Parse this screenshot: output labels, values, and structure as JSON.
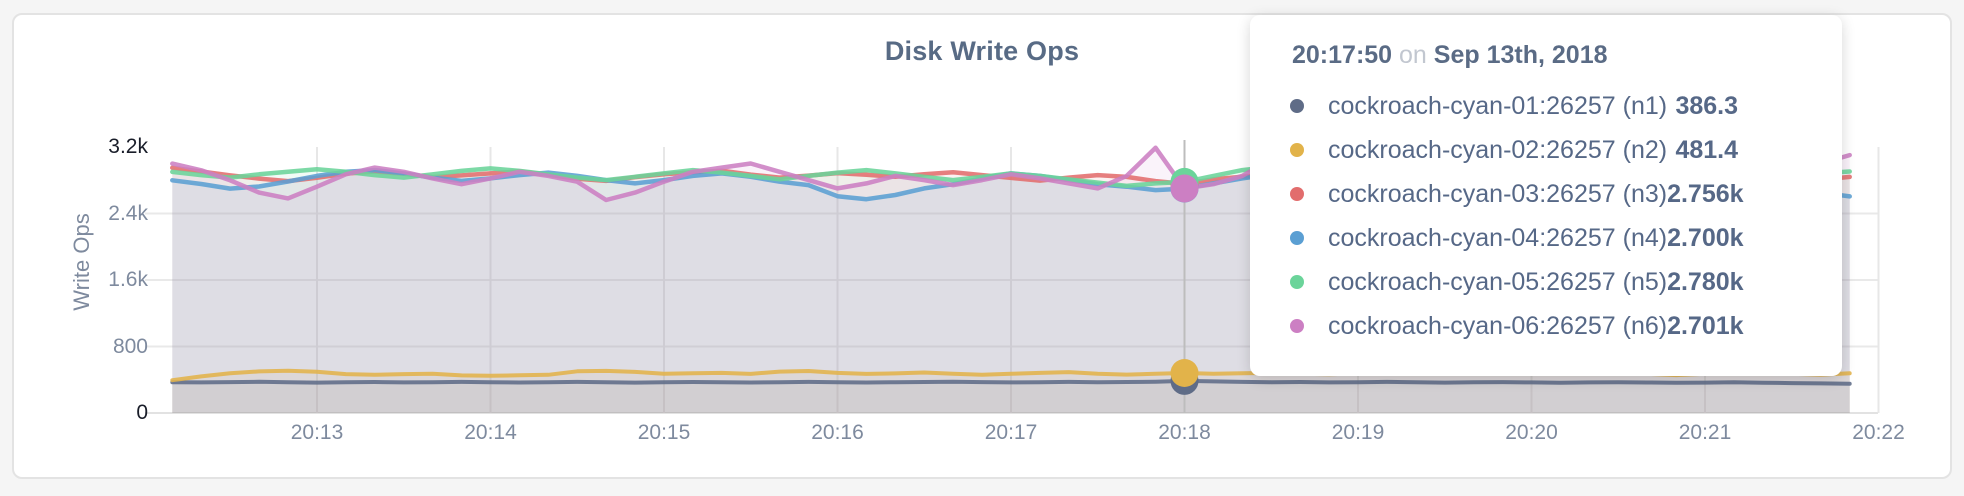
{
  "page": {
    "background": "#f5f5f5",
    "card_background": "#ffffff"
  },
  "chart": {
    "title": "Disk Write Ops",
    "ylabel": "Write Ops"
  },
  "tooltip": {
    "time": "20:17:50",
    "on_word": "on",
    "date": "Sep 13th, 2018"
  },
  "chart_data": {
    "type": "line",
    "title": "Disk Write Ops",
    "xlabel": "",
    "ylabel": "Write Ops",
    "ylim": [
      0,
      3200
    ],
    "y_ticks": [
      "0",
      "800",
      "1.6k",
      "2.4k",
      "3.2k"
    ],
    "y_tick_values": [
      0,
      800,
      1600,
      2400,
      3200
    ],
    "x_ticks": [
      "20:13",
      "20:14",
      "20:15",
      "20:16",
      "20:17",
      "20:18",
      "20:19",
      "20:20",
      "20:21",
      "20:22"
    ],
    "x_start_time": "20:12:00",
    "x_end_time": "20:21:40",
    "x_step_seconds": 10,
    "grid": true,
    "legend_position": "tooltip",
    "hover_index": 35,
    "hover_time": "20:17:50",
    "hover_date": "Sep 13th, 2018",
    "series": [
      {
        "name": "cockroach-cyan-01:26257 (n1)",
        "color": "#5F6C87",
        "hover_value_label": "386.3",
        "values": [
          370,
          368,
          372,
          375,
          370,
          366,
          370,
          373,
          368,
          371,
          374,
          370,
          367,
          371,
          374,
          370,
          366,
          369,
          373,
          370,
          367,
          371,
          374,
          370,
          367,
          370,
          373,
          376,
          372,
          368,
          371,
          374,
          370,
          373,
          377,
          386.3,
          380,
          374,
          370,
          373,
          368,
          371,
          374,
          370,
          366,
          369,
          372,
          368,
          365,
          368,
          371,
          367,
          363,
          366,
          369,
          365,
          360,
          356,
          352
        ]
      },
      {
        "name": "cockroach-cyan-02:26257 (n2)",
        "color": "#E2B34A",
        "hover_value_label": "481.4",
        "values": [
          395,
          440,
          478,
          500,
          508,
          497,
          468,
          459,
          468,
          472,
          452,
          447,
          453,
          459,
          502,
          507,
          494,
          472,
          477,
          482,
          470,
          498,
          505,
          482,
          470,
          476,
          487,
          472,
          461,
          472,
          483,
          492,
          473,
          462,
          472,
          481.4,
          473,
          477,
          483,
          472,
          466,
          476,
          487,
          476,
          470,
          481,
          476,
          471,
          477,
          483,
          492,
          472,
          456,
          471,
          482,
          502,
          471,
          461,
          477
        ]
      },
      {
        "name": "cockroach-cyan-03:26257 (n3)",
        "color": "#E26D6D",
        "hover_value_label": "2.756k",
        "values": [
          2950,
          2905,
          2860,
          2820,
          2790,
          2830,
          2880,
          2905,
          2878,
          2838,
          2858,
          2882,
          2906,
          2868,
          2818,
          2792,
          2838,
          2872,
          2896,
          2915,
          2868,
          2832,
          2856,
          2886,
          2866,
          2842,
          2872,
          2896,
          2862,
          2828,
          2796,
          2832,
          2862,
          2840,
          2790,
          2756,
          2812,
          2842,
          2866,
          2832,
          2788,
          2752,
          2796,
          2838,
          2868,
          2838,
          2806,
          2840,
          2880,
          2858,
          2826,
          2786,
          2816,
          2846,
          2826,
          2792,
          2762,
          2806,
          2840
        ]
      },
      {
        "name": "cockroach-cyan-04:26257 (n4)",
        "color": "#5B9FD3",
        "hover_value_label": "2.700k",
        "values": [
          2800,
          2755,
          2700,
          2725,
          2785,
          2852,
          2902,
          2922,
          2882,
          2832,
          2792,
          2822,
          2862,
          2892,
          2852,
          2802,
          2762,
          2802,
          2852,
          2882,
          2842,
          2782,
          2742,
          2608,
          2572,
          2622,
          2702,
          2752,
          2822,
          2882,
          2852,
          2802,
          2752,
          2722,
          2682,
          2700,
          2762,
          2822,
          2872,
          2832,
          2782,
          2742,
          2702,
          2732,
          2782,
          2852,
          2902,
          2862,
          2802,
          2752,
          2702,
          2682,
          2722,
          2762,
          2802,
          2762,
          2702,
          2652,
          2606
        ]
      },
      {
        "name": "cockroach-cyan-05:26257 (n5)",
        "color": "#6BD49A",
        "hover_value_label": "2.780k",
        "values": [
          2900,
          2862,
          2832,
          2872,
          2902,
          2932,
          2902,
          2862,
          2832,
          2872,
          2912,
          2942,
          2912,
          2872,
          2832,
          2802,
          2842,
          2882,
          2922,
          2892,
          2852,
          2812,
          2852,
          2892,
          2922,
          2882,
          2842,
          2802,
          2842,
          2882,
          2852,
          2812,
          2772,
          2732,
          2762,
          2780,
          2852,
          2922,
          2962,
          2922,
          2872,
          2822,
          2862,
          2902,
          2872,
          2832,
          2792,
          2832,
          2872,
          2902,
          2862,
          2822,
          2862,
          2902,
          2932,
          2892,
          2852,
          2882,
          2905
        ]
      },
      {
        "name": "cockroach-cyan-06:26257 (n6)",
        "color": "#CC7FC3",
        "hover_value_label": "2.701k",
        "values": [
          3000,
          2920,
          2800,
          2652,
          2582,
          2722,
          2872,
          2952,
          2902,
          2822,
          2752,
          2822,
          2902,
          2852,
          2782,
          2562,
          2652,
          2782,
          2902,
          2952,
          3002,
          2902,
          2802,
          2702,
          2762,
          2852,
          2802,
          2742,
          2802,
          2872,
          2822,
          2762,
          2702,
          2852,
          3190,
          2701,
          2752,
          2852,
          3052,
          2952,
          2852,
          2762,
          2702,
          2762,
          2852,
          2902,
          2822,
          2742,
          2782,
          2852,
          2782,
          2702,
          2602,
          2562,
          2652,
          2752,
          2852,
          3002,
          3102
        ]
      }
    ]
  }
}
